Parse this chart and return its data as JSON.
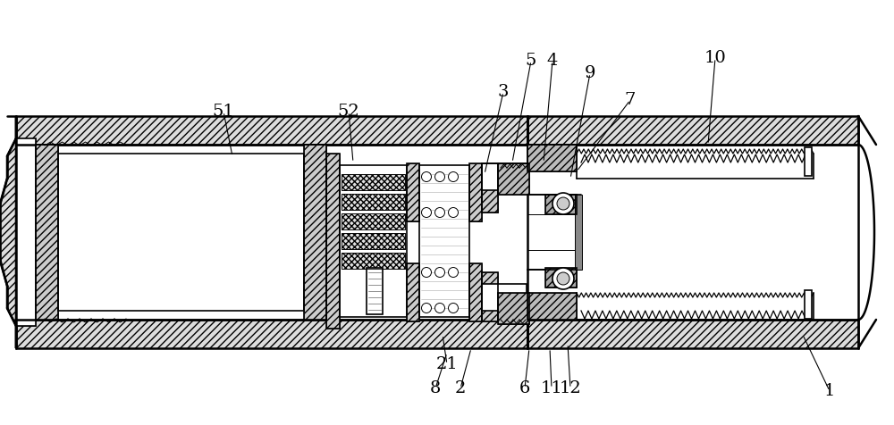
{
  "bg_color": "#ffffff",
  "line_color": "#000000",
  "fig_width": 10.0,
  "fig_height": 4.76,
  "dpi": 100,
  "lw_thick": 1.8,
  "lw_med": 1.2,
  "lw_thin": 0.7
}
